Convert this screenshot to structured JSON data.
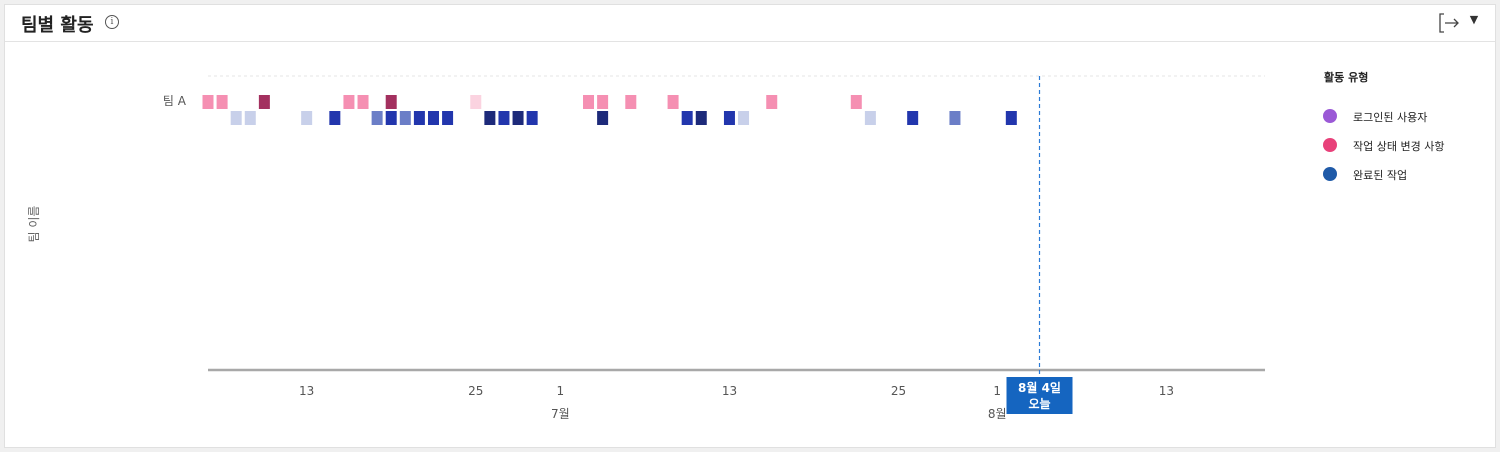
{
  "header": {
    "title": "팀별 활동",
    "info_glyph": "i"
  },
  "legend": {
    "title": "활동 유형",
    "items": [
      {
        "label": "로그인된 사용자",
        "color": "#9b59d6"
      },
      {
        "label": "작업 상태 변경 사항",
        "color": "#e8417a"
      },
      {
        "label": "완료된 작업",
        "color": "#1f5aa8"
      }
    ]
  },
  "chart_data": {
    "type": "scatter",
    "ylabel": "팀 이름",
    "teams": [
      "팀 A"
    ],
    "x_ticks": [
      {
        "date": "06-13",
        "label": "13"
      },
      {
        "date": "06-25",
        "label": "25"
      },
      {
        "date": "07-01",
        "label": "1"
      },
      {
        "date": "07-13",
        "label": "13"
      },
      {
        "date": "07-25",
        "label": "25"
      },
      {
        "date": "08-01",
        "label": "1"
      },
      {
        "date": "08-13",
        "label": "13"
      }
    ],
    "month_labels": [
      {
        "date": "07-01",
        "label": "7월"
      },
      {
        "date": "08-01",
        "label": "8월"
      }
    ],
    "today": {
      "date": "08-04",
      "line1": "8월 4일",
      "line2": "오늘"
    },
    "xlim": [
      "06-06",
      "08-20"
    ],
    "series": [
      {
        "name": "작업 상태 변경 사항",
        "palette": [
          "#fbd3e0",
          "#f58fb2",
          "#a3305f"
        ],
        "points": [
          {
            "date": "06-06",
            "level": 2
          },
          {
            "date": "06-07",
            "level": 2
          },
          {
            "date": "06-10",
            "level": 3
          },
          {
            "date": "06-16",
            "level": 2
          },
          {
            "date": "06-17",
            "level": 2
          },
          {
            "date": "06-19",
            "level": 3
          },
          {
            "date": "06-25",
            "level": 1
          },
          {
            "date": "07-03",
            "level": 2
          },
          {
            "date": "07-04",
            "level": 2
          },
          {
            "date": "07-06",
            "level": 2
          },
          {
            "date": "07-09",
            "level": 2
          },
          {
            "date": "07-16",
            "level": 2
          },
          {
            "date": "07-22",
            "level": 2
          }
        ]
      },
      {
        "name": "완료된 작업",
        "palette": [
          "#c8d0ea",
          "#6b7ec7",
          "#2236ad",
          "#1d2a7a"
        ],
        "points": [
          {
            "date": "06-08",
            "level": 1
          },
          {
            "date": "06-09",
            "level": 1
          },
          {
            "date": "06-13",
            "level": 1
          },
          {
            "date": "06-15",
            "level": 3
          },
          {
            "date": "06-18",
            "level": 2
          },
          {
            "date": "06-19",
            "level": 3
          },
          {
            "date": "06-20",
            "level": 2
          },
          {
            "date": "06-21",
            "level": 3
          },
          {
            "date": "06-22",
            "level": 3
          },
          {
            "date": "06-23",
            "level": 3
          },
          {
            "date": "06-26",
            "level": 4
          },
          {
            "date": "06-27",
            "level": 3
          },
          {
            "date": "06-28",
            "level": 4
          },
          {
            "date": "06-29",
            "level": 3
          },
          {
            "date": "07-04",
            "level": 4
          },
          {
            "date": "07-10",
            "level": 3
          },
          {
            "date": "07-11",
            "level": 4
          },
          {
            "date": "07-13",
            "level": 3
          },
          {
            "date": "07-14",
            "level": 1
          },
          {
            "date": "07-23",
            "level": 1
          },
          {
            "date": "07-26",
            "level": 3
          },
          {
            "date": "07-29",
            "level": 2
          },
          {
            "date": "08-02",
            "level": 3
          }
        ]
      }
    ]
  }
}
